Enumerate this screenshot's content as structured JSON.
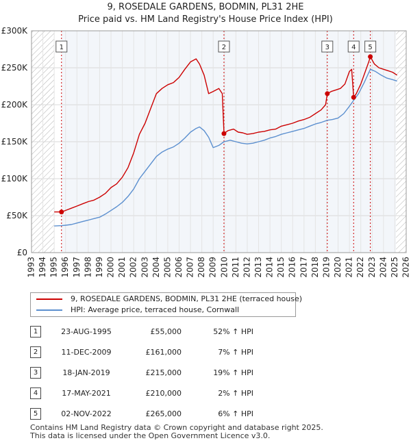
{
  "title": {
    "line1": "9, ROSEDALE GARDENS, BODMIN, PL31 2HE",
    "line2": "Price paid vs. HM Land Registry's House Price Index (HPI)"
  },
  "colors": {
    "property": "#cc0000",
    "hpi": "#5b8fcf",
    "shade": "#dde6f2",
    "marker": "#cc0000"
  },
  "legend": {
    "property_label": "9, ROSEDALE GARDENS, BODMIN, PL31 2HE (terraced house)",
    "hpi_label": "HPI: Average price, terraced house, Cornwall"
  },
  "sales": [
    {
      "num": "1",
      "date": "23-AUG-1995",
      "price": "£55,000",
      "hpi": "52% ↑ HPI"
    },
    {
      "num": "2",
      "date": "11-DEC-2009",
      "price": "£161,000",
      "hpi": "7% ↑ HPI"
    },
    {
      "num": "3",
      "date": "18-JAN-2019",
      "price": "£215,000",
      "hpi": "19% ↑ HPI"
    },
    {
      "num": "4",
      "date": "17-MAY-2021",
      "price": "£210,000",
      "hpi": "2% ↑ HPI"
    },
    {
      "num": "5",
      "date": "02-NOV-2022",
      "price": "£265,000",
      "hpi": "6% ↑ HPI"
    }
  ],
  "footer": {
    "line1": "Contains HM Land Registry data © Crown copyright and database right 2025.",
    "line2": "This data is licensed under the Open Government Licence v3.0."
  },
  "chart_data": {
    "type": "line",
    "title": "9, ROSEDALE GARDENS, BODMIN, PL31 2HE — Price paid vs. HM Land Registry's House Price Index (HPI)",
    "xlim": [
      1993,
      2026
    ],
    "ylim": [
      0,
      300000
    ],
    "x_ticks": [
      1993,
      1994,
      1995,
      1996,
      1997,
      1998,
      1999,
      2000,
      2001,
      2002,
      2003,
      2004,
      2005,
      2006,
      2007,
      2008,
      2009,
      2010,
      2011,
      2012,
      2013,
      2014,
      2015,
      2016,
      2017,
      2018,
      2019,
      2020,
      2021,
      2022,
      2023,
      2024,
      2025,
      2026
    ],
    "y_ticks": [
      {
        "value": 0,
        "label": "£0"
      },
      {
        "value": 50000,
        "label": "£50K"
      },
      {
        "value": 100000,
        "label": "£100K"
      },
      {
        "value": 150000,
        "label": "£150K"
      },
      {
        "value": 200000,
        "label": "£200K"
      },
      {
        "value": 250000,
        "label": "£250K"
      },
      {
        "value": 300000,
        "label": "£300K"
      }
    ],
    "hatched_ranges": [
      [
        1993,
        1995.0
      ],
      [
        2025.1,
        2026
      ]
    ],
    "sale_markers": [
      {
        "label": "1",
        "x": 1995.64,
        "y": 55000
      },
      {
        "label": "2",
        "x": 2009.95,
        "y": 161000
      },
      {
        "label": "3",
        "x": 2019.05,
        "y": 215000
      },
      {
        "label": "4",
        "x": 2021.37,
        "y": 210000
      },
      {
        "label": "5",
        "x": 2022.84,
        "y": 265000
      }
    ],
    "series": [
      {
        "name": "9, ROSEDALE GARDENS, BODMIN, PL31 2HE (terraced house)",
        "x": [
          1995.0,
          1995.64,
          1996.0,
          1996.5,
          1997.0,
          1997.5,
          1998.0,
          1998.5,
          1999.0,
          1999.5,
          2000.0,
          2000.5,
          2001.0,
          2001.5,
          2002.0,
          2002.5,
          2003.0,
          2003.5,
          2004.0,
          2004.5,
          2005.0,
          2005.5,
          2006.0,
          2006.5,
          2007.0,
          2007.5,
          2007.8,
          2008.2,
          2008.6,
          2009.0,
          2009.5,
          2009.8,
          2009.95,
          2010.3,
          2010.8,
          2011.2,
          2011.6,
          2012.0,
          2012.5,
          2013.0,
          2013.5,
          2014.0,
          2014.5,
          2015.0,
          2015.5,
          2016.0,
          2016.5,
          2017.0,
          2017.5,
          2018.0,
          2018.5,
          2018.9,
          2019.05,
          2019.4,
          2019.8,
          2020.2,
          2020.6,
          2021.0,
          2021.2,
          2021.37,
          2021.6,
          2022.0,
          2022.4,
          2022.7,
          2022.84,
          2023.2,
          2023.6,
          2024.0,
          2024.4,
          2024.8,
          2025.2
        ],
        "values": [
          55000,
          55000,
          57000,
          60000,
          63000,
          66000,
          69000,
          71000,
          75000,
          80000,
          88000,
          93000,
          102000,
          115000,
          135000,
          160000,
          175000,
          195000,
          215000,
          222000,
          227000,
          230000,
          237000,
          248000,
          258000,
          262000,
          255000,
          240000,
          215000,
          218000,
          222000,
          215000,
          161000,
          165000,
          167000,
          163000,
          162000,
          160000,
          161000,
          163000,
          164000,
          166000,
          167000,
          171000,
          173000,
          175000,
          178000,
          180000,
          183000,
          188000,
          193000,
          200000,
          215000,
          218000,
          220000,
          222000,
          228000,
          245000,
          248000,
          210000,
          215000,
          228000,
          245000,
          258000,
          265000,
          255000,
          250000,
          248000,
          246000,
          244000,
          240000
        ]
      },
      {
        "name": "HPI: Average price, terraced house, Cornwall",
        "x": [
          1995.0,
          1995.64,
          1996.0,
          1996.5,
          1997.0,
          1997.5,
          1998.0,
          1998.5,
          1999.0,
          1999.5,
          2000.0,
          2000.5,
          2001.0,
          2001.5,
          2002.0,
          2002.5,
          2003.0,
          2003.5,
          2004.0,
          2004.5,
          2005.0,
          2005.5,
          2006.0,
          2006.5,
          2007.0,
          2007.5,
          2007.8,
          2008.2,
          2008.6,
          2009.0,
          2009.5,
          2009.95,
          2010.5,
          2011.0,
          2011.5,
          2012.0,
          2012.5,
          2013.0,
          2013.5,
          2014.0,
          2014.5,
          2015.0,
          2015.5,
          2016.0,
          2016.5,
          2017.0,
          2017.5,
          2018.0,
          2018.5,
          2019.05,
          2019.5,
          2020.0,
          2020.5,
          2021.0,
          2021.37,
          2021.8,
          2022.3,
          2022.84,
          2023.3,
          2023.8,
          2024.3,
          2024.8,
          2025.2
        ],
        "values": [
          36000,
          36500,
          37000,
          38000,
          40000,
          42000,
          44000,
          46000,
          48000,
          52000,
          57000,
          62000,
          68000,
          76000,
          86000,
          100000,
          110000,
          120000,
          130000,
          136000,
          140000,
          143000,
          148000,
          155000,
          163000,
          168000,
          170000,
          165000,
          156000,
          142000,
          145000,
          150000,
          152000,
          150000,
          148000,
          147000,
          148000,
          150000,
          152000,
          155000,
          157000,
          160000,
          162000,
          164000,
          166000,
          168000,
          171000,
          174000,
          176000,
          179000,
          180000,
          182000,
          188000,
          198000,
          206000,
          215000,
          230000,
          248000,
          245000,
          240000,
          236000,
          234000,
          232000
        ]
      }
    ]
  }
}
